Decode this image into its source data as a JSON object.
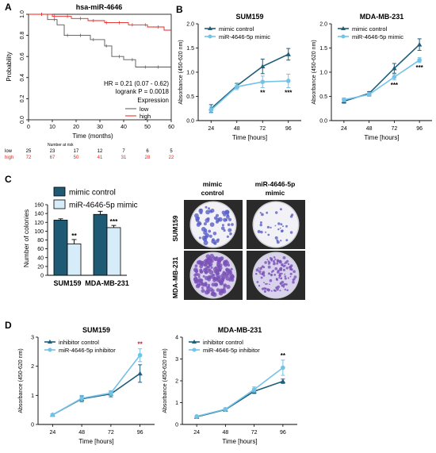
{
  "panels": {
    "A": "A",
    "B": "B",
    "C": "C",
    "D": "D"
  },
  "colors": {
    "dark": "#1f5f7a",
    "light": "#73c2e8",
    "km_low": "#555555",
    "km_high": "#e8211d",
    "bar_dark": "#1e5a73",
    "bar_light": "#d6ecf8"
  },
  "chart_data": [
    {
      "type": "line",
      "id": "km",
      "title": "hsa-miR-4646",
      "xlabel": "Time (months)",
      "ylabel": "Probability",
      "xlim": [
        0,
        60
      ],
      "ylim": [
        0,
        1
      ],
      "xticks": [
        "0",
        "10",
        "20",
        "30",
        "40",
        "50",
        "60"
      ],
      "yticks": [
        "0.0",
        "0.2",
        "0.4",
        "0.6",
        "0.8",
        "1.0"
      ],
      "series": [
        {
          "name": "low",
          "color": "#555555",
          "steps": [
            [
              0,
              1.0
            ],
            [
              8,
              1.0
            ],
            [
              8,
              0.95
            ],
            [
              12,
              0.95
            ],
            [
              12,
              0.9
            ],
            [
              15,
              0.9
            ],
            [
              15,
              0.8
            ],
            [
              26,
              0.8
            ],
            [
              26,
              0.76
            ],
            [
              32,
              0.76
            ],
            [
              32,
              0.7
            ],
            [
              35,
              0.7
            ],
            [
              35,
              0.6
            ],
            [
              40,
              0.6
            ],
            [
              40,
              0.57
            ],
            [
              45,
              0.57
            ],
            [
              45,
              0.5
            ],
            [
              60,
              0.5
            ]
          ]
        },
        {
          "name": "high",
          "color": "#e8211d",
          "steps": [
            [
              0,
              1.0
            ],
            [
              10,
              1.0
            ],
            [
              10,
              0.98
            ],
            [
              18,
              0.98
            ],
            [
              18,
              0.96
            ],
            [
              25,
              0.96
            ],
            [
              25,
              0.94
            ],
            [
              32,
              0.94
            ],
            [
              32,
              0.92
            ],
            [
              42,
              0.92
            ],
            [
              42,
              0.9
            ],
            [
              50,
              0.9
            ],
            [
              50,
              0.88
            ],
            [
              57,
              0.88
            ],
            [
              57,
              0.85
            ],
            [
              60,
              0.85
            ]
          ]
        }
      ],
      "annotations": [
        "HR = 0.21 (0.07 - 0.62)",
        "logrank P = 0.0018"
      ],
      "legend_title": "Expression",
      "legend": [
        "low",
        "high"
      ],
      "risk_table": {
        "header": "Number at risk",
        "rows": [
          {
            "label": "low",
            "values": [
              "25",
              "23",
              "17",
              "12",
              "7",
              "6",
              "5"
            ]
          },
          {
            "label": "high",
            "values": [
              "72",
              "67",
              "50",
              "41",
              "31",
              "28",
              "22"
            ]
          }
        ]
      }
    },
    {
      "type": "line",
      "id": "b1",
      "title": "SUM159",
      "xlabel": "Time [hours]",
      "ylabel": "Absorbance (450-620 nm)",
      "categories": [
        "24",
        "48",
        "72",
        "96"
      ],
      "ylim": [
        0,
        2.0
      ],
      "yticks": [
        "0.0",
        "0.5",
        "1.0",
        "1.5",
        "2.0"
      ],
      "series": [
        {
          "name": "mimic control",
          "values": [
            0.25,
            0.72,
            1.12,
            1.37
          ],
          "err": [
            0.08,
            0.05,
            0.15,
            0.12
          ]
        },
        {
          "name": "miR-4646-5p mimic",
          "values": [
            0.22,
            0.7,
            0.8,
            0.82
          ],
          "err": [
            0.06,
            0.06,
            0.12,
            0.14
          ]
        }
      ],
      "significance": [
        "",
        "",
        "**",
        "***"
      ]
    },
    {
      "type": "line",
      "id": "b2",
      "title": "MDA-MB-231",
      "xlabel": "Time [hours]",
      "ylabel": "Absorbance (450-620 nm)",
      "categories": [
        "24",
        "48",
        "72",
        "96"
      ],
      "ylim": [
        0,
        2.0
      ],
      "yticks": [
        "0.0",
        "0.5",
        "1.0",
        "1.5",
        "2.0"
      ],
      "series": [
        {
          "name": "mimic control",
          "values": [
            0.4,
            0.56,
            1.08,
            1.57
          ],
          "err": [
            0.04,
            0.04,
            0.1,
            0.12
          ]
        },
        {
          "name": "miR-4646-5p mimic",
          "values": [
            0.43,
            0.54,
            0.9,
            1.25
          ],
          "err": [
            0.04,
            0.04,
            0.06,
            0.05
          ]
        }
      ],
      "significance": [
        "",
        "",
        "***",
        "***"
      ]
    },
    {
      "type": "bar",
      "id": "c",
      "ylabel": "Number of colonies",
      "categories": [
        "SUM159",
        "MDA-MB-231"
      ],
      "ylim": [
        0,
        160
      ],
      "yticks": [
        "0",
        "20",
        "40",
        "60",
        "80",
        "100",
        "120",
        "140",
        "160"
      ],
      "series": [
        {
          "name": "mimic control",
          "values": [
            125,
            138
          ],
          "err": [
            3,
            7
          ]
        },
        {
          "name": "miR-4646-5p mimic",
          "values": [
            71,
            108
          ],
          "err": [
            10,
            5
          ]
        }
      ],
      "significance": [
        "**",
        "***"
      ]
    },
    {
      "type": "line",
      "id": "d1",
      "title": "SUM159",
      "xlabel": "Time [hours]",
      "ylabel": "Absorbance (450-620 nm)",
      "categories": [
        "24",
        "48",
        "72",
        "96"
      ],
      "ylim": [
        0,
        3
      ],
      "yticks": [
        "0",
        "1",
        "2",
        "3"
      ],
      "series": [
        {
          "name": "inhibitor control",
          "values": [
            0.33,
            0.88,
            1.05,
            1.75
          ],
          "err": [
            0.03,
            0.1,
            0.1,
            0.3
          ]
        },
        {
          "name": "miR-4646-5p inhibitor",
          "values": [
            0.33,
            0.9,
            1.08,
            2.38
          ],
          "err": [
            0.03,
            0.1,
            0.08,
            0.22
          ]
        }
      ],
      "significance": [
        "",
        "",
        "",
        "**"
      ]
    },
    {
      "type": "line",
      "id": "d2",
      "title": "MDA-MB-231",
      "xlabel": "Time [hours]",
      "ylabel": "Absorbance (450-620 nm)",
      "categories": [
        "24",
        "48",
        "72",
        "96"
      ],
      "ylim": [
        0,
        4
      ],
      "yticks": [
        "0",
        "1",
        "2",
        "3",
        "4"
      ],
      "series": [
        {
          "name": "inhibitor control",
          "values": [
            0.35,
            0.68,
            1.52,
            1.98
          ],
          "err": [
            0.03,
            0.06,
            0.1,
            0.1
          ]
        },
        {
          "name": "miR-4646-5p inhibitor",
          "values": [
            0.37,
            0.7,
            1.6,
            2.6
          ],
          "err": [
            0.03,
            0.06,
            0.12,
            0.35
          ]
        }
      ],
      "significance": [
        "",
        "",
        "",
        "**"
      ]
    }
  ],
  "colony_image": {
    "columns": [
      "mimic control",
      "miR-4646-5p mimic"
    ],
    "rows": [
      "SUM159",
      "MDA-MB-231"
    ]
  }
}
